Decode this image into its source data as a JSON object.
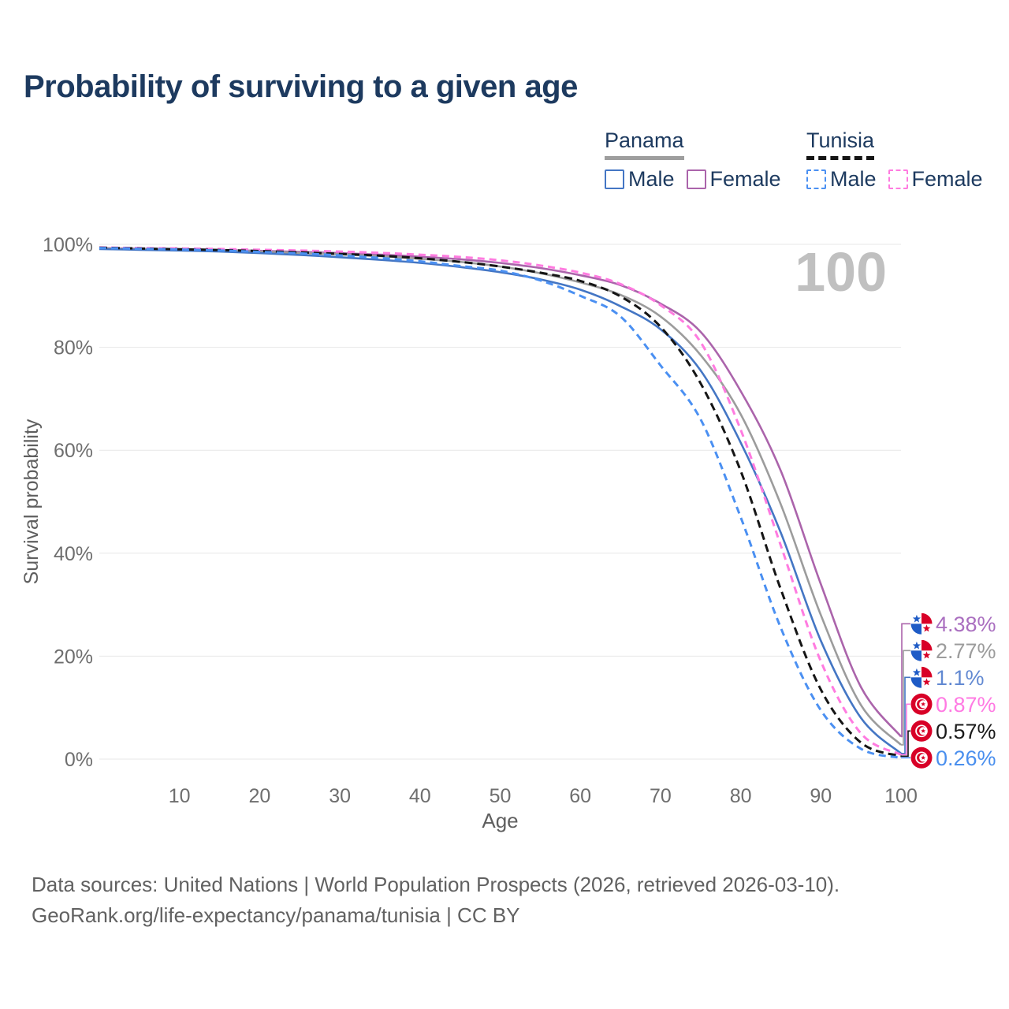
{
  "header": {
    "title": "Probability of surviving to a given age"
  },
  "legend": {
    "groups": [
      {
        "title": "Panama",
        "underline_style": "solid",
        "underline_color": "#9e9e9e",
        "items": [
          {
            "label": "Male",
            "color": "#4476c4",
            "dash": false
          },
          {
            "label": "Female",
            "color": "#ab64ab",
            "dash": false
          }
        ]
      },
      {
        "title": "Tunisia",
        "underline_style": "dashed",
        "underline_color": "#151515",
        "items": [
          {
            "label": "Male",
            "color": "#4b90f2",
            "dash": true
          },
          {
            "label": "Female",
            "color": "#ff7be0",
            "dash": true
          }
        ]
      }
    ]
  },
  "chart_data": {
    "type": "line",
    "title": "Probability of surviving to a given age",
    "xlabel": "Age",
    "ylabel": "Survival probability",
    "xlim": [
      0,
      100
    ],
    "ylim": [
      0,
      100
    ],
    "x_ticks": [
      10,
      20,
      30,
      40,
      50,
      60,
      70,
      80,
      90,
      100
    ],
    "y_ticks": [
      0,
      20,
      40,
      60,
      80,
      100
    ],
    "y_tick_suffix": "%",
    "grid": true,
    "legend_position": "top-right",
    "watermark": "100",
    "x": [
      0,
      5,
      10,
      15,
      20,
      25,
      30,
      35,
      40,
      45,
      50,
      55,
      60,
      65,
      70,
      75,
      80,
      85,
      90,
      95,
      100
    ],
    "series": [
      {
        "name": "Panama Female",
        "country": "Panama",
        "sex": "Female",
        "flag": "panama",
        "color": "#ab64ab",
        "label_color": "#aa6fc0",
        "dash": "",
        "end_label": "4.38%",
        "values": [
          99.3,
          99.15,
          99.05,
          98.9,
          98.75,
          98.55,
          98.3,
          98.0,
          97.6,
          97.1,
          96.4,
          95.4,
          94.0,
          92.1,
          88.5,
          83.0,
          71.5,
          56.0,
          34.0,
          14.0,
          4.38
        ]
      },
      {
        "name": "Panama",
        "country": "Panama",
        "sex": "Both",
        "flag": "panama",
        "color": "#9c9c9c",
        "label_color": "#9c9c9c",
        "dash": "",
        "end_label": "2.77%",
        "values": [
          99.2,
          99.05,
          98.95,
          98.8,
          98.6,
          98.35,
          98.05,
          97.7,
          97.2,
          96.6,
          95.7,
          94.4,
          92.6,
          90.2,
          86.0,
          78.5,
          67.0,
          49.5,
          28.0,
          10.5,
          2.77
        ]
      },
      {
        "name": "Panama Male",
        "country": "Panama",
        "sex": "Male",
        "flag": "panama",
        "color": "#4476c4",
        "label_color": "#6289d2",
        "dash": "",
        "end_label": "1.1%",
        "values": [
          99.1,
          98.95,
          98.8,
          98.6,
          98.3,
          97.95,
          97.5,
          97.0,
          96.4,
          95.6,
          94.6,
          93.2,
          91.2,
          88.0,
          83.5,
          75.5,
          61.5,
          44.0,
          23.0,
          8.0,
          1.1
        ]
      },
      {
        "name": "Tunisia Female",
        "country": "Tunisia",
        "sex": "Female",
        "flag": "tunisia",
        "color": "#ff7be0",
        "label_color": "#ff7ae3",
        "dash": "9 6",
        "end_label": "0.87%",
        "values": [
          99.4,
          99.3,
          99.2,
          99.1,
          98.95,
          98.8,
          98.6,
          98.35,
          98.0,
          97.55,
          96.9,
          95.9,
          94.5,
          92.3,
          88.2,
          81.0,
          64.0,
          41.5,
          19.0,
          5.0,
          0.87
        ]
      },
      {
        "name": "Tunisia",
        "country": "Tunisia",
        "sex": "Both",
        "flag": "tunisia",
        "color": "#151515",
        "label_color": "#1a1a1a",
        "dash": "10 6",
        "end_label": "0.57%",
        "values": [
          99.35,
          99.2,
          99.05,
          98.9,
          98.7,
          98.45,
          98.15,
          97.8,
          97.3,
          96.6,
          95.7,
          94.5,
          92.9,
          89.9,
          84.0,
          73.0,
          56.0,
          33.0,
          13.5,
          3.2,
          0.57
        ]
      },
      {
        "name": "Tunisia Male",
        "country": "Tunisia",
        "sex": "Male",
        "flag": "tunisia",
        "color": "#4b90f2",
        "label_color": "#4a8fee",
        "dash": "9 6",
        "end_label": "0.26%",
        "values": [
          99.3,
          99.15,
          99.0,
          98.8,
          98.55,
          98.25,
          97.85,
          97.35,
          96.7,
          95.8,
          94.9,
          93.0,
          90.0,
          86.0,
          76.5,
          66.0,
          47.0,
          25.5,
          9.5,
          2.0,
          0.26
        ]
      }
    ]
  },
  "footer": {
    "line1": "Data sources: United Nations | World Population Prospects (2026, retrieved 2026-03-10).",
    "line2": "GeoRank.org/life-expectancy/panama/tunisia | CC BY"
  }
}
